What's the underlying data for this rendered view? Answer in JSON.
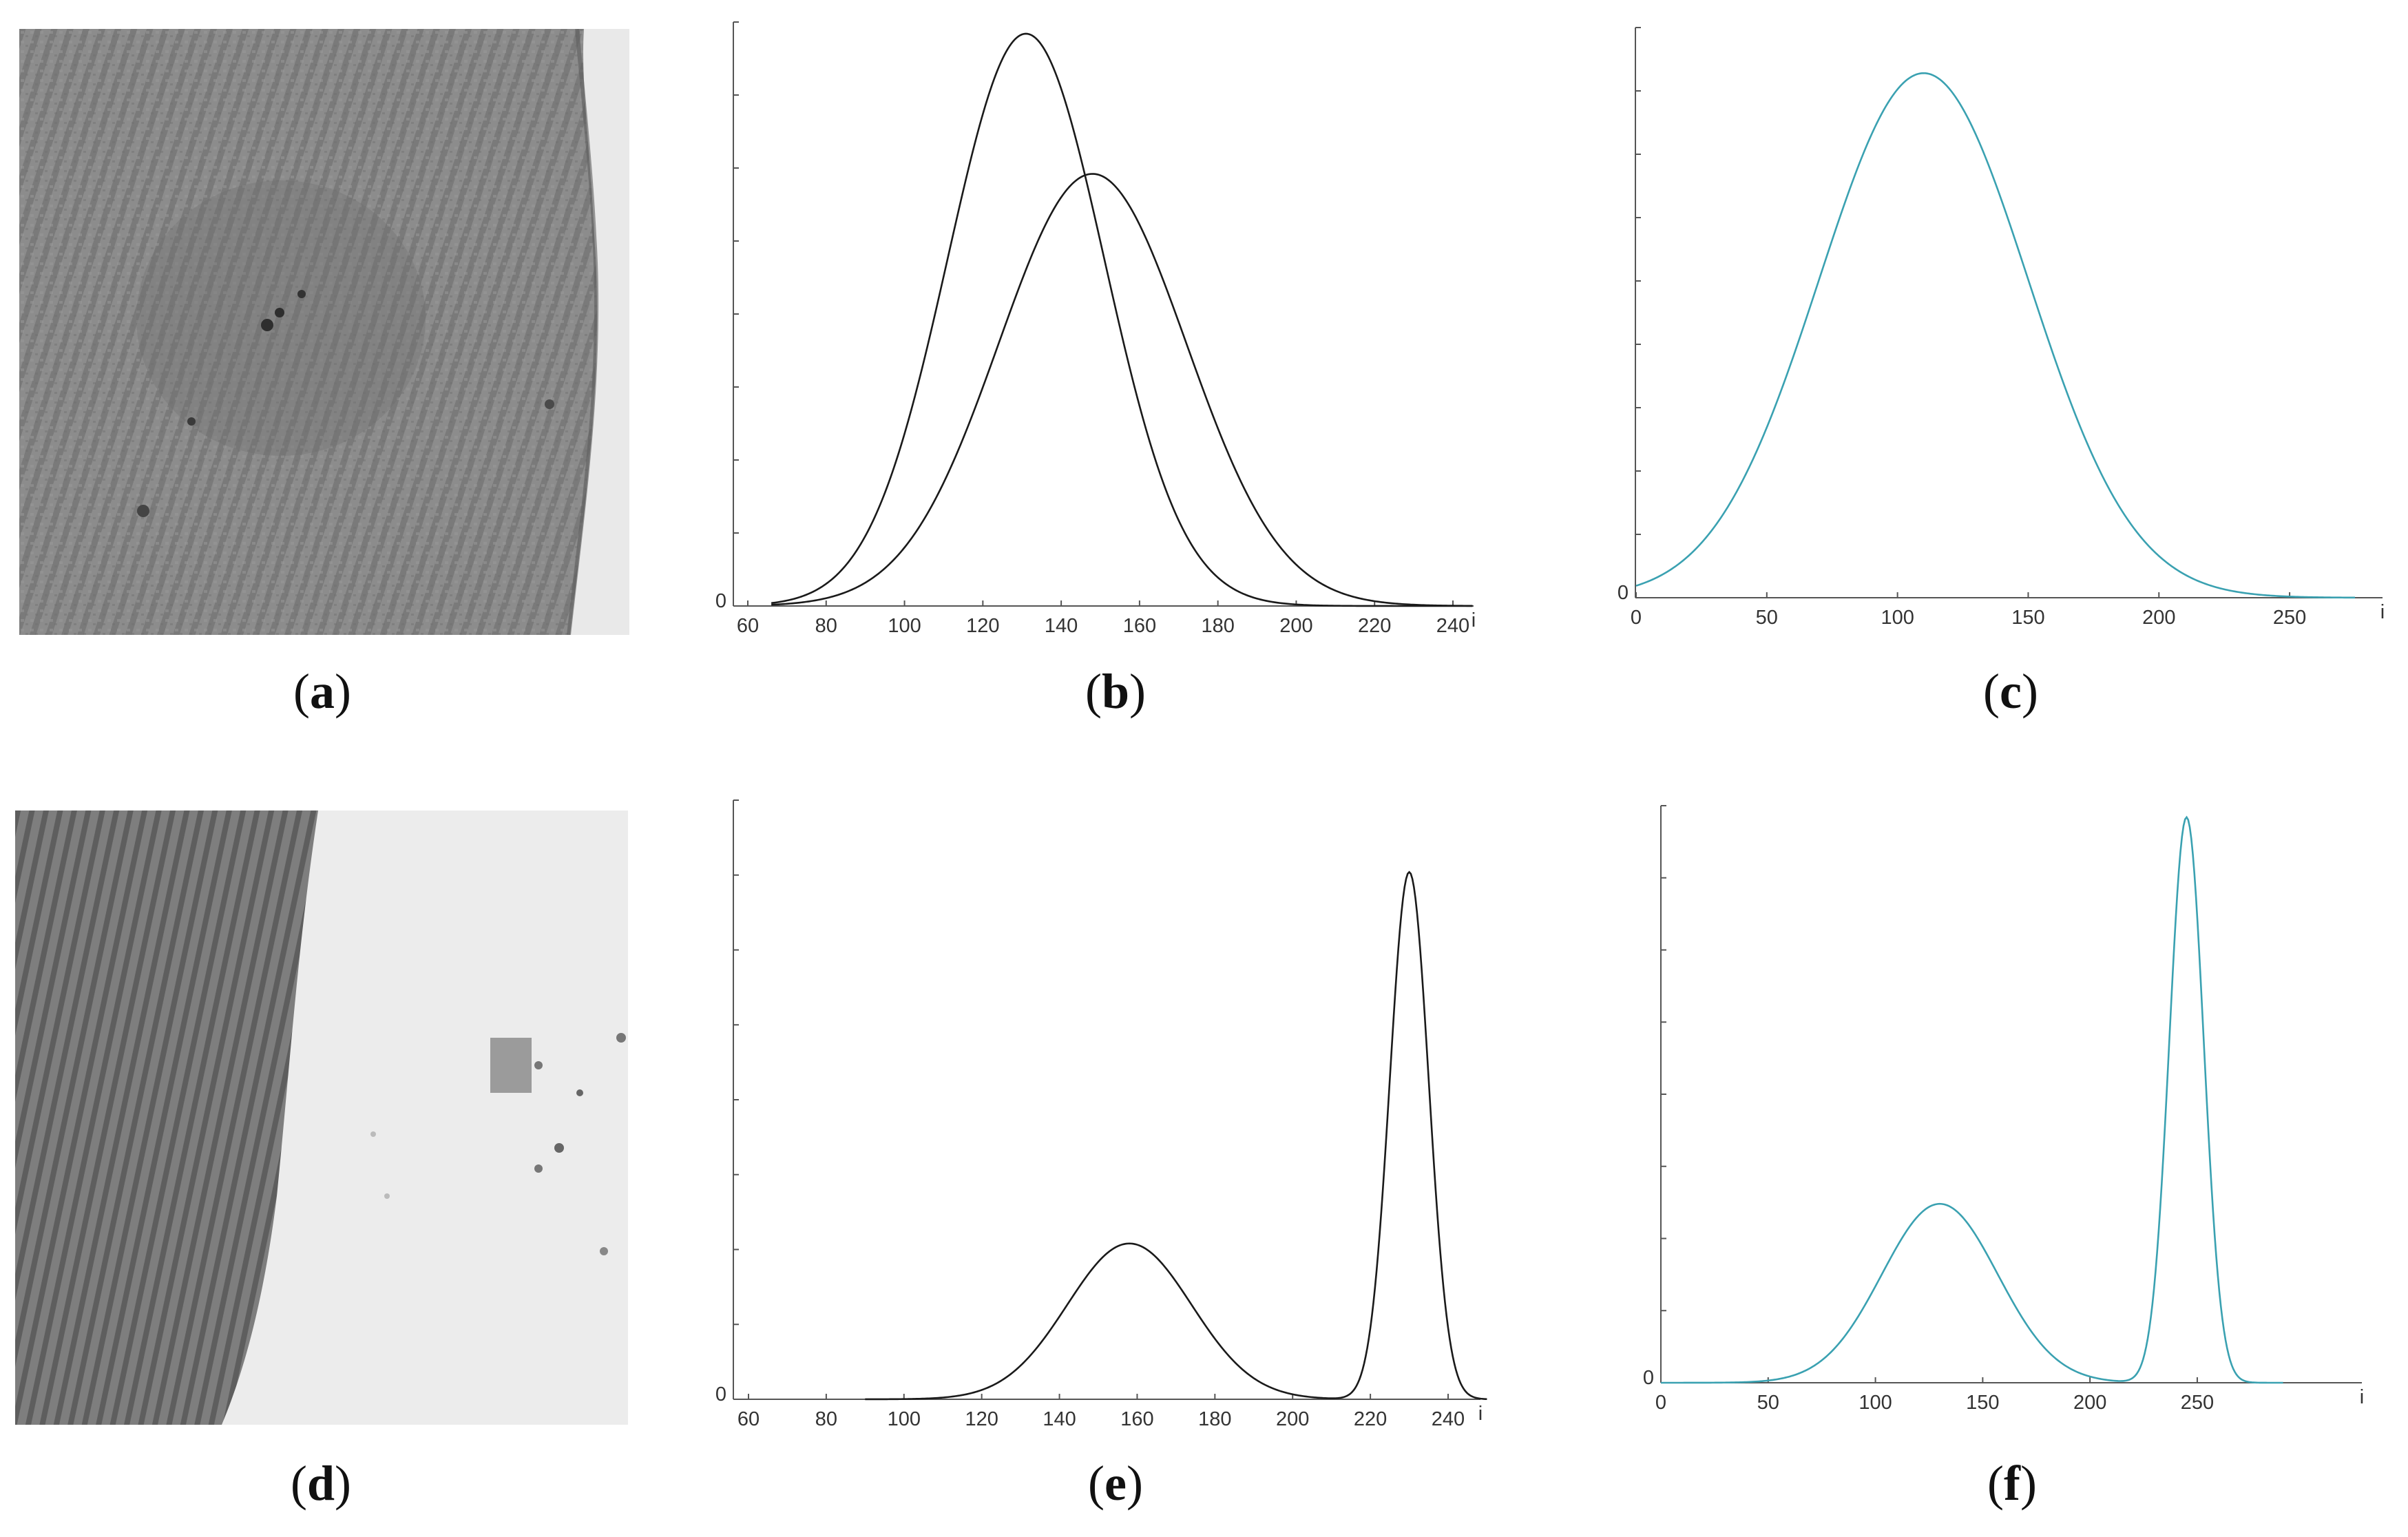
{
  "captions": {
    "a": "a",
    "b": "b",
    "c": "c",
    "d": "d",
    "e": "e",
    "f": "f"
  },
  "chart_data": [
    {
      "panel": "b",
      "type": "line",
      "xlabel": "i",
      "x_ticks": [
        60,
        80,
        100,
        120,
        140,
        160,
        180,
        200,
        220,
        240
      ],
      "y_ticks_labeled": [
        "0"
      ],
      "xlim": [
        60,
        250
      ],
      "ylim": [
        0,
        1.0
      ],
      "line_color": "#1a1a1a",
      "series": [
        {
          "curve": "gaussian",
          "mean": 131,
          "sd": 20,
          "peak": 0.98,
          "x_range": [
            66,
            245
          ]
        },
        {
          "curve": "gaussian",
          "mean": 148,
          "sd": 24,
          "peak": 0.74,
          "x_range": [
            66,
            245
          ]
        }
      ]
    },
    {
      "panel": "c",
      "type": "line",
      "xlabel": "i",
      "x_ticks": [
        0,
        50,
        100,
        150,
        200,
        250
      ],
      "y_ticks_labeled": [
        "0"
      ],
      "xlim": [
        0,
        285
      ],
      "ylim": [
        0,
        1.0
      ],
      "line_color": "#3aa1b1",
      "series": [
        {
          "curve": "gaussian",
          "mean": 110,
          "sd": 40,
          "peak": 0.92,
          "x_range": [
            0,
            275
          ]
        }
      ]
    },
    {
      "panel": "e",
      "type": "line",
      "xlabel": "i",
      "x_ticks": [
        60,
        80,
        100,
        120,
        140,
        160,
        180,
        200,
        220,
        240
      ],
      "y_ticks_labeled": [
        "0"
      ],
      "xlim": [
        60,
        250
      ],
      "ylim": [
        0,
        1.0
      ],
      "line_color": "#1a1a1a",
      "series": [
        {
          "curve": "bimodal",
          "components": [
            {
              "mean": 158,
              "sd": 16,
              "peak": 0.26
            },
            {
              "mean": 230,
              "sd": 5,
              "peak": 0.88
            }
          ],
          "x_range": [
            90,
            250
          ]
        }
      ]
    },
    {
      "panel": "f",
      "type": "line",
      "xlabel": "i",
      "x_ticks": [
        0,
        50,
        100,
        150,
        200,
        250
      ],
      "y_ticks_labeled": [
        "0"
      ],
      "xlim": [
        0,
        292
      ],
      "ylim": [
        0,
        1.0
      ],
      "line_color": "#3aa1b1",
      "series": [
        {
          "curve": "bimodal",
          "components": [
            {
              "mean": 130,
              "sd": 27,
              "peak": 0.31
            },
            {
              "mean": 245,
              "sd": 8,
              "peak": 0.98
            }
          ],
          "x_range": [
            0,
            290
          ]
        }
      ]
    }
  ]
}
